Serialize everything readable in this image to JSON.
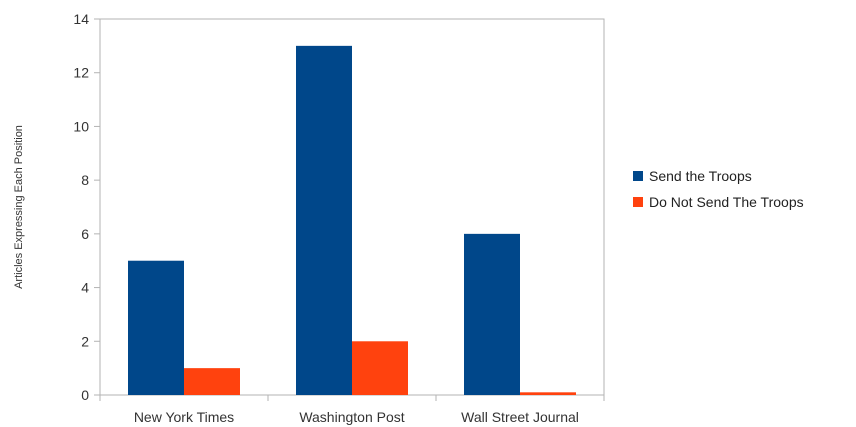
{
  "chart_data": {
    "type": "bar",
    "title": "",
    "xlabel": "",
    "ylabel": "Articles Expressing Each Position",
    "categories": [
      "New York Times",
      "Washington Post",
      "Wall Street Journal"
    ],
    "series": [
      {
        "name": "Send the Troops",
        "color": "#00478a",
        "values": [
          5,
          13,
          6
        ]
      },
      {
        "name": "Do Not Send The Troops",
        "color": "#ff420e",
        "values": [
          1,
          2,
          0.1
        ]
      }
    ],
    "ylim": [
      0,
      14
    ],
    "yticks": [
      "0",
      "2",
      "4",
      "6",
      "8",
      "10",
      "12",
      "14"
    ],
    "grid": false,
    "legend_position": "right"
  }
}
